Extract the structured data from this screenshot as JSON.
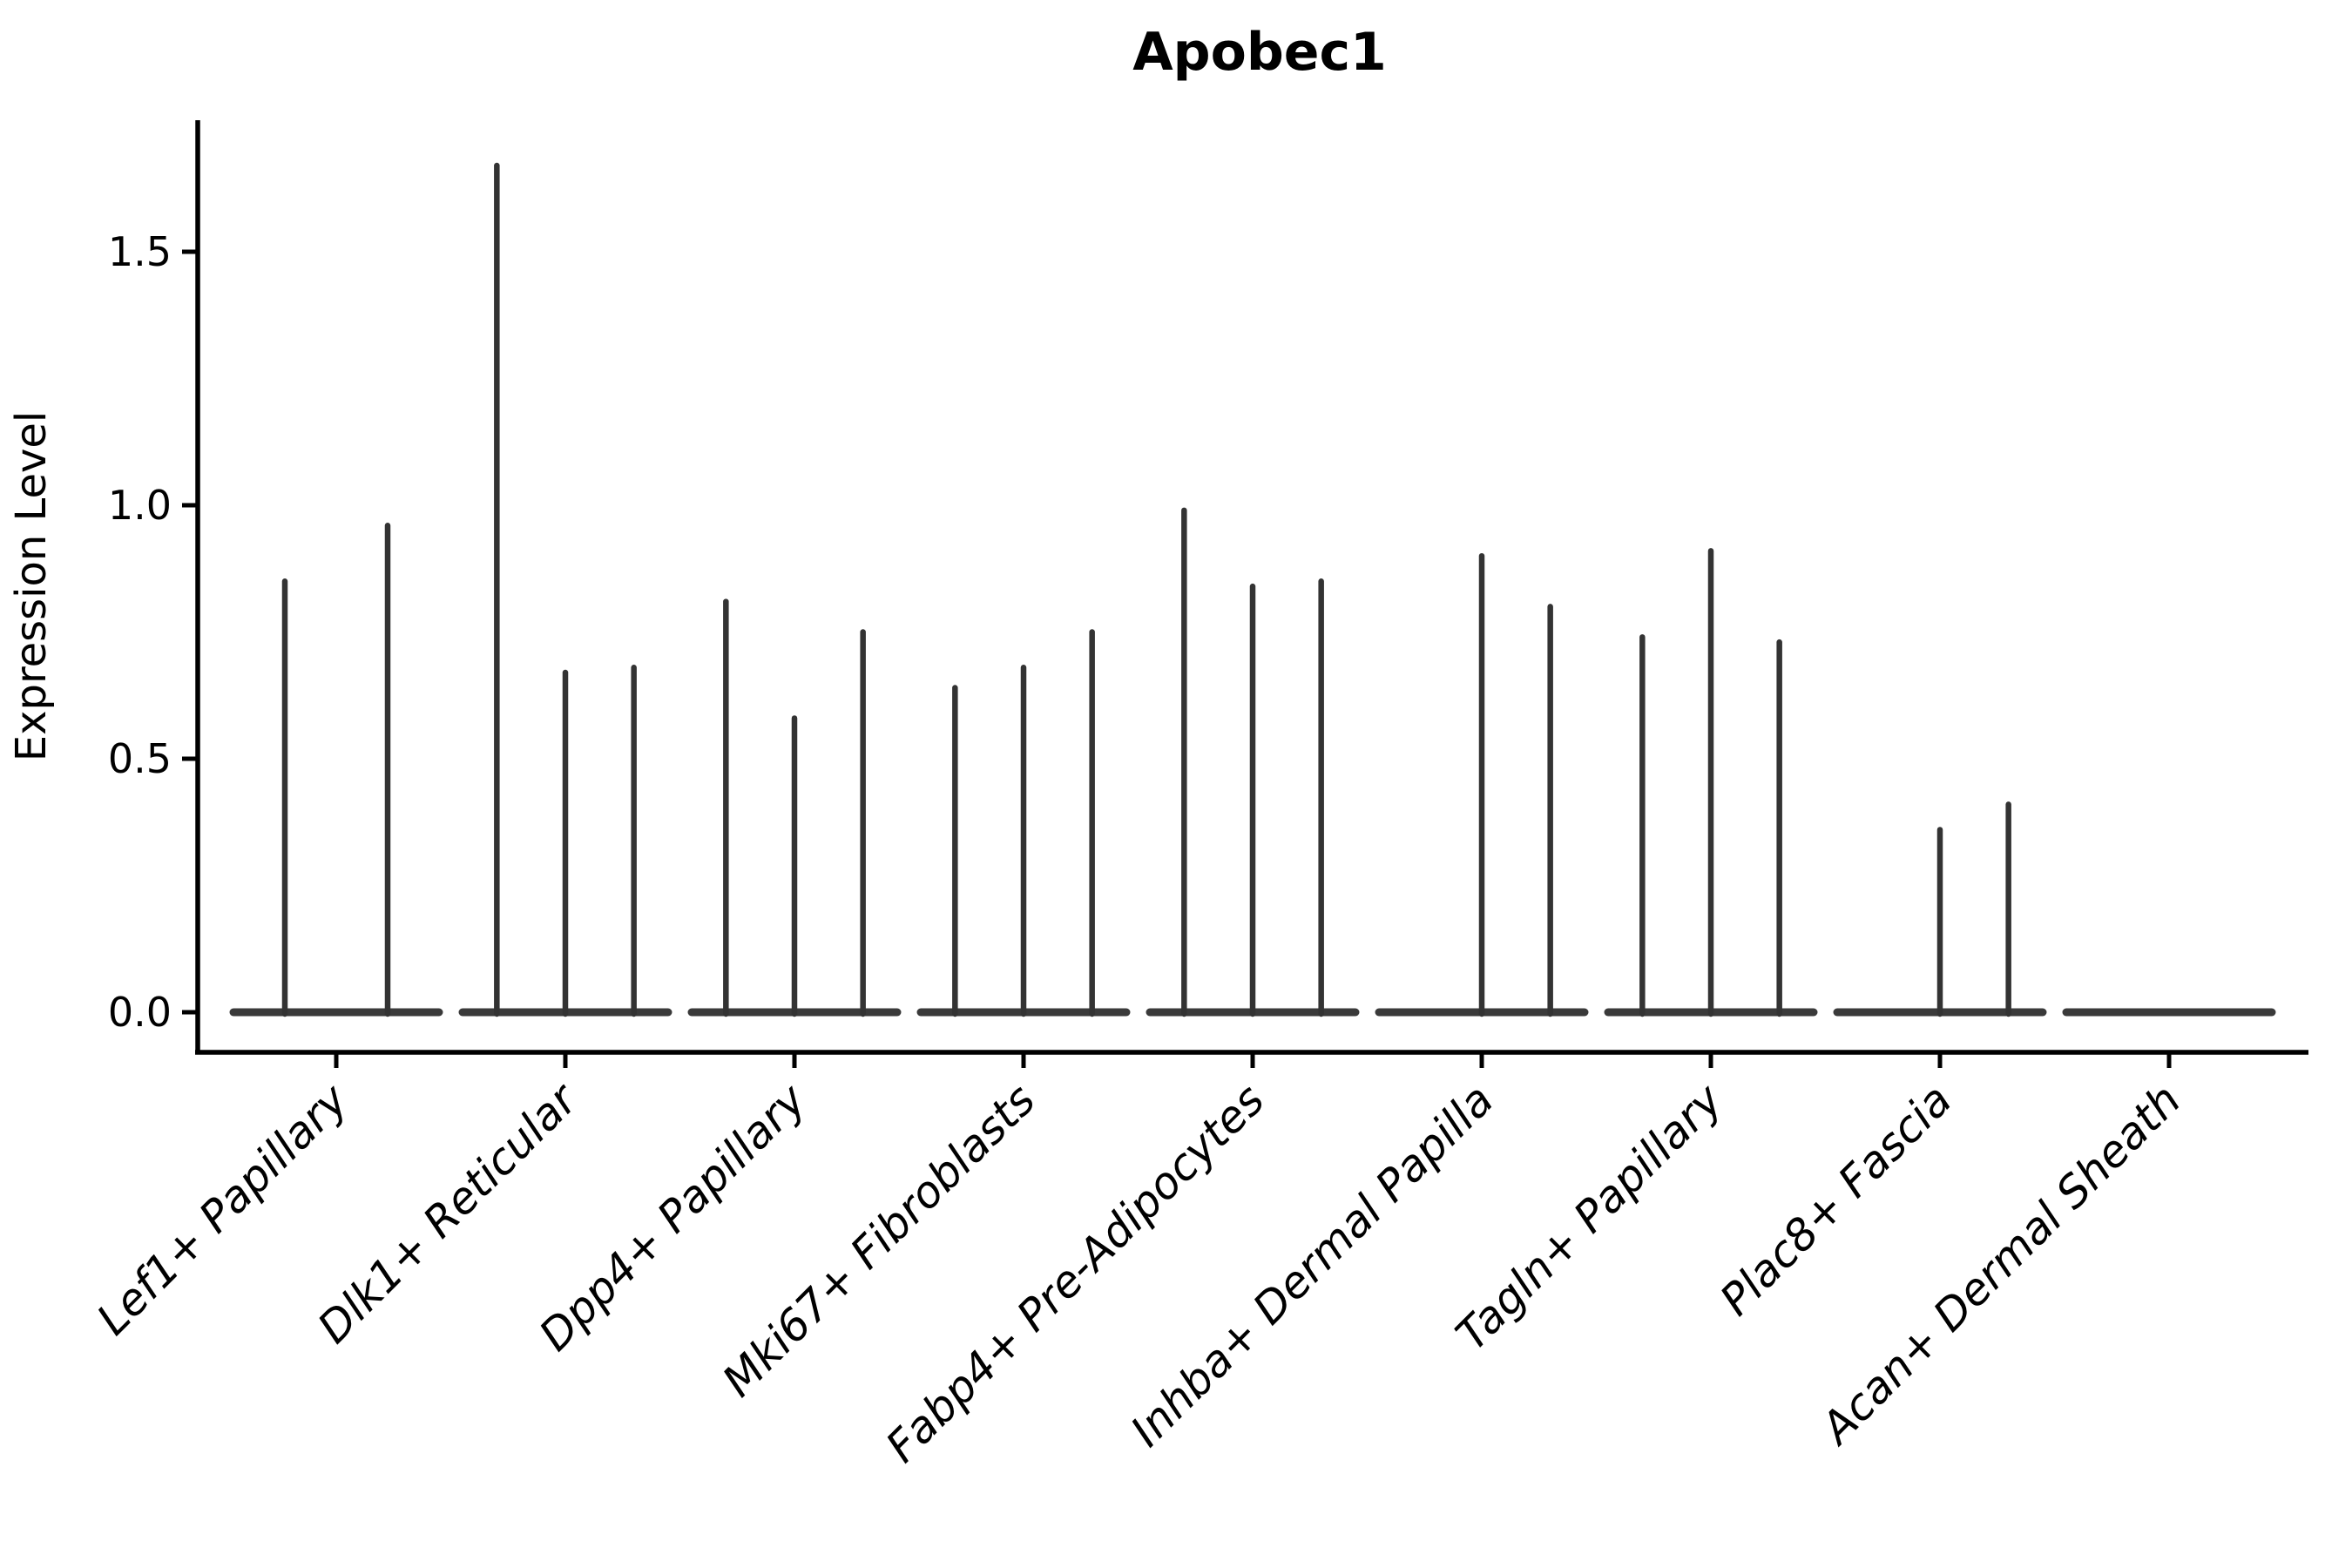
{
  "title": "Apobec1",
  "y_axis": {
    "label": "Expression Level",
    "tick_labels": [
      "0.0",
      "0.5",
      "1.0",
      "1.5"
    ]
  },
  "x_axis": {
    "tick_labels": [
      "Lef1+ Papillary",
      "Dlk1+ Reticular",
      "Dpp4+ Papillary",
      "Mki67+ Fibroblasts",
      "Fabp4+ Pre-Adipocytes",
      "Inhba+ Dermal Papilla",
      "Tagln+ Papillary",
      "Plac8+ Fascia",
      "Acan+ Dermal Sheath"
    ]
  },
  "colors": {
    "ink": "#000000",
    "violin_stroke": "#333333",
    "baseline_stroke": "#3a3a3a",
    "background": "#ffffff"
  },
  "chart_data": {
    "type": "violin",
    "title": "Apobec1",
    "xlabel": "",
    "ylabel": "Expression Level",
    "ylim": [
      0,
      1.76
    ],
    "yticks": [
      0.0,
      0.5,
      1.0,
      1.5
    ],
    "grid": false,
    "legend": "none",
    "style": "needle violins: wide flat base at y=0 with a thin spike rising to the maximum expression value; flat-only violins have no spike",
    "categories": [
      "Lef1+ Papillary",
      "Dlk1+ Reticular",
      "Dpp4+ Papillary",
      "Mki67+ Fibroblasts",
      "Fabp4+ Pre-Adipocytes",
      "Inhba+ Dermal Papilla",
      "Tagln+ Papillary",
      "Plac8+ Fascia",
      "Acan+ Dermal Sheath"
    ],
    "groups": [
      {
        "category": "Lef1+ Papillary",
        "violin_peaks": [
          0.85,
          0.96
        ]
      },
      {
        "category": "Dlk1+ Reticular",
        "violin_peaks": [
          1.67,
          0.67,
          0.68
        ]
      },
      {
        "category": "Dpp4+ Papillary",
        "violin_peaks": [
          0.81,
          0.58,
          0.75
        ]
      },
      {
        "category": "Mki67+ Fibroblasts",
        "violin_peaks": [
          0.64,
          0.68,
          0.75
        ]
      },
      {
        "category": "Fabp4+ Pre-Adipocytes",
        "violin_peaks": [
          0.99,
          0.84,
          0.85
        ]
      },
      {
        "category": "Inhba+ Dermal Papilla",
        "violin_peaks": [
          0.0,
          0.9,
          0.8
        ]
      },
      {
        "category": "Tagln+ Papillary",
        "violin_peaks": [
          0.74,
          0.91,
          0.73
        ]
      },
      {
        "category": "Plac8+ Fascia",
        "violin_peaks": [
          0.0,
          0.36,
          0.41
        ]
      },
      {
        "category": "Acan+ Dermal Sheath",
        "violin_peaks": [
          0.0,
          0.0,
          0.0
        ]
      }
    ]
  }
}
